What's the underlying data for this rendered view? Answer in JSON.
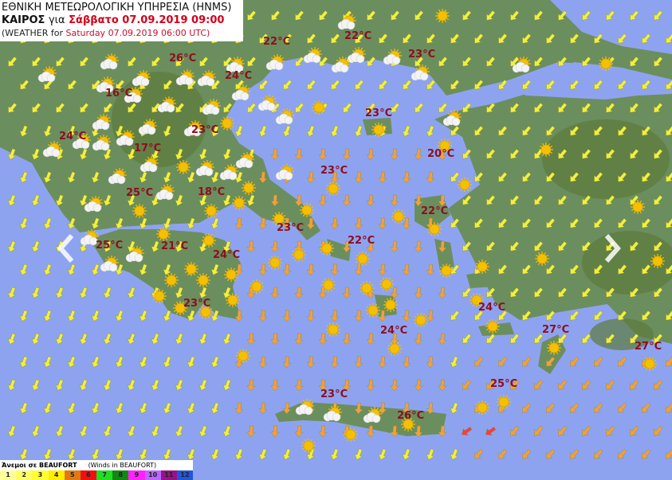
{
  "header": {
    "line1": "ΕΘΝΙΚΗ ΜΕΤΕΩΡΟΛΟΓΙΚΗ ΥΠΗΡΕΣΙΑ (HNMS)",
    "kairos": "ΚΑΙΡΟΣ",
    "gia": "για",
    "date_gr": "Σάββατο 07.09.2019 09:00",
    "line3_prefix": "(WEATHER for",
    "date_en": "Saturday 07.09.2019 06:00 UTC)"
  },
  "colors": {
    "sea": "#8ea3f0",
    "land": "#6b8e5e",
    "temp": "#8b1020",
    "wind_weak": "#f0f040",
    "wind_moderate": "#f0a040",
    "wind_strong": "#f04040"
  },
  "temperatures": [
    "26°C",
    "22°C",
    "22°C",
    "23°C",
    "24°C",
    "16°C",
    "23°C",
    "24°C",
    "23°C",
    "17°C",
    "20°C",
    "23°C",
    "25°C",
    "18°C",
    "22°C",
    "23°C",
    "22°C",
    "25°C",
    "21°C",
    "24°C",
    "23°C",
    "24°C",
    "24°C",
    "27°C",
    "27°C",
    "25°C",
    "23°C",
    "26°C"
  ],
  "navigation": {
    "prev_icon": "chevron-left-icon",
    "next_icon": "chevron-right-icon"
  },
  "legend": {
    "title_gr": "Άνεμοι σε BEAUFORT",
    "title_en": "(Winds in BEAUFORT)",
    "scale": [
      {
        "label": "1",
        "color": "#ffff99"
      },
      {
        "label": "2",
        "color": "#ffff66"
      },
      {
        "label": "3",
        "color": "#ffff33"
      },
      {
        "label": "4",
        "color": "#ffee00"
      },
      {
        "label": "5",
        "color": "#e07a10"
      },
      {
        "label": "6",
        "color": "#ee1111"
      },
      {
        "label": "7",
        "color": "#22dd22"
      },
      {
        "label": "8",
        "color": "#118811"
      },
      {
        "label": "9",
        "color": "#ff22ff"
      },
      {
        "label": "10",
        "color": "#bb66ff"
      },
      {
        "label": "11",
        "color": "#991188"
      },
      {
        "label": "12",
        "color": "#2255dd"
      }
    ]
  }
}
